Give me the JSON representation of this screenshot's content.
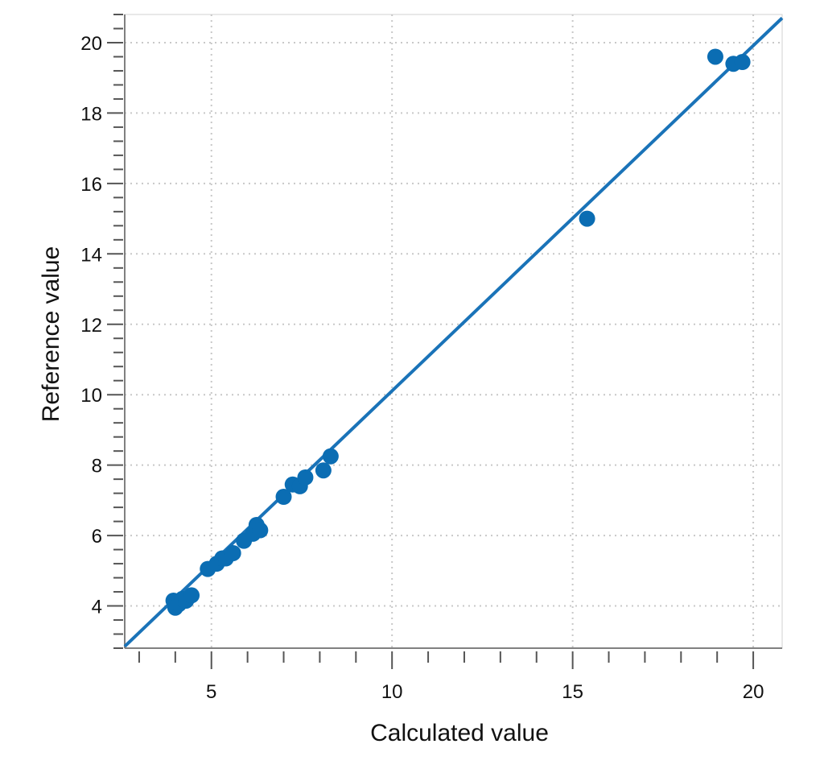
{
  "chart_data": {
    "type": "scatter",
    "title": "",
    "xlabel": "Calculated value",
    "ylabel": "Reference value",
    "xlim": [
      2.6,
      20.8
    ],
    "ylim": [
      2.8,
      20.8
    ],
    "x_ticks": [
      5,
      10,
      15,
      20
    ],
    "y_ticks": [
      4,
      6,
      8,
      10,
      12,
      14,
      16,
      18,
      20
    ],
    "grid": true,
    "legend": "none",
    "colors": {
      "points": "#0b6db3",
      "line": "#1a73b8",
      "grid": "#c8c8c8",
      "axis": "#808080"
    },
    "series": [
      {
        "points": [
          {
            "x": 3.95,
            "y": 4.15
          },
          {
            "x": 4.0,
            "y": 3.95
          },
          {
            "x": 4.1,
            "y": 4.05
          },
          {
            "x": 4.2,
            "y": 4.2
          },
          {
            "x": 4.3,
            "y": 4.15
          },
          {
            "x": 4.45,
            "y": 4.3
          },
          {
            "x": 4.9,
            "y": 5.05
          },
          {
            "x": 5.15,
            "y": 5.2
          },
          {
            "x": 5.3,
            "y": 5.35
          },
          {
            "x": 5.4,
            "y": 5.35
          },
          {
            "x": 5.6,
            "y": 5.5
          },
          {
            "x": 5.9,
            "y": 5.85
          },
          {
            "x": 6.15,
            "y": 6.05
          },
          {
            "x": 6.25,
            "y": 6.3
          },
          {
            "x": 6.35,
            "y": 6.15
          },
          {
            "x": 7.0,
            "y": 7.1
          },
          {
            "x": 7.25,
            "y": 7.45
          },
          {
            "x": 7.45,
            "y": 7.4
          },
          {
            "x": 7.6,
            "y": 7.65
          },
          {
            "x": 8.1,
            "y": 7.85
          },
          {
            "x": 8.3,
            "y": 8.25
          },
          {
            "x": 15.4,
            "y": 15.0
          },
          {
            "x": 18.95,
            "y": 19.6
          },
          {
            "x": 19.45,
            "y": 19.4
          },
          {
            "x": 19.7,
            "y": 19.45
          }
        ]
      }
    ],
    "fit_line": {
      "x": [
        2.6,
        20.8
      ],
      "y": [
        2.85,
        20.7
      ]
    }
  }
}
